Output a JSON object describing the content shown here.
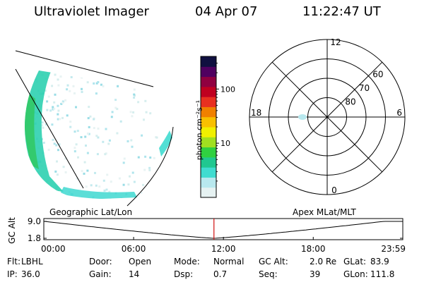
{
  "header": {
    "instrument": "Ultraviolet Imager",
    "date": "04 Apr 07",
    "time": "11:22:47 UT"
  },
  "colorbar": {
    "label": "photon cm⁻²s⁻¹",
    "ticks": [
      {
        "label": "100",
        "value": 100
      },
      {
        "label": "10",
        "value": 10
      }
    ],
    "scale": "log",
    "colors": [
      "#e6f2f2",
      "#b8e8ee",
      "#40dcd0",
      "#20c890",
      "#30d040",
      "#a0e020",
      "#f0f000",
      "#f8c000",
      "#f08000",
      "#e83020",
      "#c00020",
      "#900040",
      "#500060",
      "#101040"
    ]
  },
  "polar_plot": {
    "hour_labels": [
      {
        "label": "12",
        "hour": 12
      },
      {
        "label": "18",
        "hour": 18
      },
      {
        "label": "6",
        "hour": 6
      },
      {
        "label": "0",
        "hour": 0
      }
    ],
    "lat_labels": [
      {
        "label": "60",
        "lat": 60
      },
      {
        "label": "70",
        "lat": 70
      },
      {
        "label": "80",
        "lat": 80
      }
    ],
    "lat_min": 50
  },
  "orbit_plot": {
    "left_caption": "Geographic Lat/Lon",
    "right_caption": "Apex  MLat/MLT",
    "ylabel": "GC Alt",
    "yticks": [
      {
        "label": "9.0",
        "value": 9.0
      },
      {
        "label": "1.8",
        "value": 1.8
      }
    ],
    "xticks": [
      "00:00",
      "06:00",
      "12:00",
      "18:00",
      "23:59"
    ],
    "marker_time": "11:22",
    "marker_color": "#d01010"
  },
  "status": {
    "rows": [
      [
        {
          "label": "Flt:",
          "value": "LBHL"
        },
        {
          "label": "Door:",
          "value": "Open"
        },
        {
          "label": "Mode:",
          "value": "Normal"
        },
        {
          "label": "GC Alt:",
          "value": "2.0 Re"
        },
        {
          "label": "GLat:",
          "value": "83.9"
        }
      ],
      [
        {
          "label": "IP:",
          "value": "36.0"
        },
        {
          "label": "Gain:",
          "value": "14"
        },
        {
          "label": "Dsp:",
          "value": "0.7"
        },
        {
          "label": "Seq:",
          "value": "39"
        },
        {
          "label": "GLon:",
          "value": "111.8"
        }
      ]
    ]
  }
}
